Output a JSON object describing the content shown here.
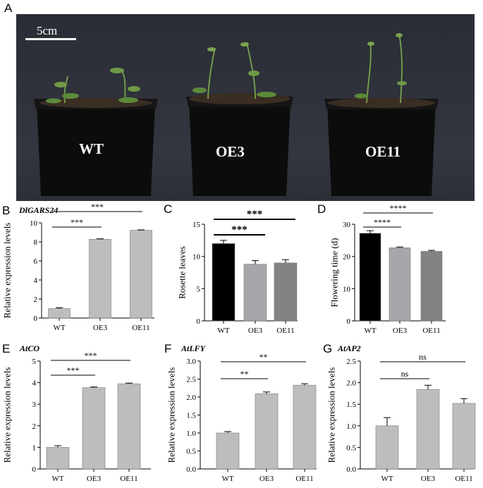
{
  "photo": {
    "panel": "A",
    "scale_bar_label": "5cm",
    "pot_labels": [
      "WT",
      "OE3",
      "OE11"
    ],
    "colors": {
      "background": "#2b2e36",
      "pot": "#0c0c0d",
      "soil": "#3a2d22",
      "plant": "#6f9a47"
    }
  },
  "chart_data": [
    {
      "id": "B",
      "type": "bar",
      "panel": "B",
      "title": "DlGARS24",
      "categories": [
        "WT",
        "OE3",
        "OE11"
      ],
      "values": [
        1.0,
        8.28,
        9.22
      ],
      "errors": [
        0.08,
        0.04,
        0.04
      ],
      "ylabel": "Relative expression levels",
      "ylim": [
        0,
        10
      ],
      "yticks": [
        0,
        2,
        4,
        6,
        8,
        10
      ],
      "ytick_labels": [
        "0",
        "2",
        "4",
        "6",
        "8",
        "10"
      ],
      "bar_colors": [
        "#bdbdbd",
        "#bdbdbd",
        "#bdbdbd"
      ],
      "significance": [
        {
          "from": 0,
          "to": 1,
          "label": "***"
        },
        {
          "from": 0,
          "to": 2,
          "label": "***"
        }
      ]
    },
    {
      "id": "C",
      "type": "bar",
      "panel": "C",
      "title": "",
      "categories": [
        "WT",
        "OE3",
        "OE11"
      ],
      "values": [
        12.0,
        8.8,
        9.0
      ],
      "errors": [
        0.5,
        0.55,
        0.5
      ],
      "ylabel": "Rosette leaves",
      "ylim": [
        0,
        15
      ],
      "yticks": [
        0,
        5,
        10,
        15
      ],
      "ytick_labels": [
        "0",
        "5",
        "10",
        "15"
      ],
      "bar_colors": [
        "#000000",
        "#a6a6ab",
        "#838383"
      ],
      "significance": [
        {
          "from": 0,
          "to": 1,
          "label": "***"
        },
        {
          "from": 0,
          "to": 2,
          "label": "***"
        }
      ]
    },
    {
      "id": "D",
      "type": "bar",
      "panel": "D",
      "title": "",
      "categories": [
        "WT",
        "OE3",
        "OE11"
      ],
      "values": [
        27.2,
        22.7,
        21.6
      ],
      "errors": [
        0.8,
        0.25,
        0.3
      ],
      "ylabel": "Flowering time (d)",
      "ylim": [
        0,
        30
      ],
      "yticks": [
        0,
        10,
        20,
        30
      ],
      "ytick_labels": [
        "0",
        "10",
        "20",
        "30"
      ],
      "bar_colors": [
        "#000000",
        "#a6a6ab",
        "#838383"
      ],
      "significance": [
        {
          "from": 0,
          "to": 1,
          "label": "****"
        },
        {
          "from": 0,
          "to": 2,
          "label": "****"
        }
      ]
    },
    {
      "id": "E",
      "type": "bar",
      "panel": "E",
      "title": "AtCO",
      "categories": [
        "WT",
        "OE3",
        "OE11"
      ],
      "values": [
        1.0,
        3.77,
        3.95
      ],
      "errors": [
        0.08,
        0.03,
        0.03
      ],
      "ylabel": "Relative expression levels",
      "ylim": [
        0,
        5
      ],
      "yticks": [
        0,
        1,
        2,
        3,
        4,
        5
      ],
      "ytick_labels": [
        "0",
        "1",
        "2",
        "3",
        "4",
        "5"
      ],
      "bar_colors": [
        "#bdbdbd",
        "#bdbdbd",
        "#bdbdbd"
      ],
      "significance": [
        {
          "from": 0,
          "to": 1,
          "label": "***"
        },
        {
          "from": 0,
          "to": 2,
          "label": "***"
        }
      ]
    },
    {
      "id": "F",
      "type": "bar",
      "panel": "F",
      "title": "AtLFY",
      "categories": [
        "WT",
        "OE3",
        "OE11"
      ],
      "values": [
        1.0,
        2.09,
        2.33
      ],
      "errors": [
        0.04,
        0.05,
        0.04
      ],
      "ylabel": "Relative expression levels",
      "ylim": [
        0,
        3
      ],
      "yticks": [
        0,
        0.5,
        1,
        1.5,
        2,
        2.5,
        3
      ],
      "ytick_labels": [
        "0.0",
        "0.5",
        "1.0",
        "1.5",
        "2.0",
        "2.5",
        "3.0"
      ],
      "bar_colors": [
        "#bdbdbd",
        "#bdbdbd",
        "#bdbdbd"
      ],
      "significance": [
        {
          "from": 0,
          "to": 1,
          "label": "**"
        },
        {
          "from": 0,
          "to": 2,
          "label": "**"
        }
      ]
    },
    {
      "id": "G",
      "type": "bar",
      "panel": "G",
      "title": "AtAP2",
      "categories": [
        "WT",
        "OE3",
        "OE11"
      ],
      "values": [
        1.0,
        1.84,
        1.52
      ],
      "errors": [
        0.19,
        0.1,
        0.11
      ],
      "ylabel": "Relative expression levels",
      "ylim": [
        0,
        2.5
      ],
      "yticks": [
        0,
        0.5,
        1,
        1.5,
        2,
        2.5
      ],
      "ytick_labels": [
        "0.0",
        "0.5",
        "1.0",
        "1.5",
        "2.0",
        "2.5"
      ],
      "bar_colors": [
        "#bdbdbd",
        "#bdbdbd",
        "#bdbdbd"
      ],
      "significance": [
        {
          "from": 0,
          "to": 1,
          "label": "ns"
        },
        {
          "from": 0,
          "to": 2,
          "label": "ns"
        }
      ]
    }
  ]
}
